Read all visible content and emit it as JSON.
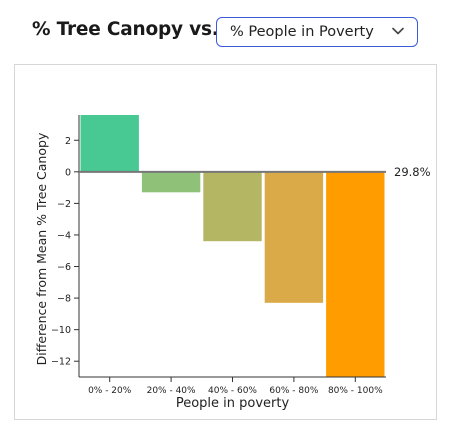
{
  "header": {
    "title": "% Tree Canopy vs.",
    "selector": {
      "value": "% People in Poverty",
      "icon": "chevron-down-icon"
    }
  },
  "chart_data": {
    "type": "bar",
    "xlabel": "People in poverty",
    "ylabel": "Difference from Mean % Tree Canopy",
    "categories": [
      "0% - 20%",
      "20% - 40%",
      "40% - 60%",
      "60% - 80%",
      "80% - 100%"
    ],
    "values": [
      3.6,
      -1.3,
      -4.4,
      -8.3,
      -13.0
    ],
    "colors": [
      "#48c993",
      "#8fc278",
      "#b5b664",
      "#dbaa48",
      "#ff9c00"
    ],
    "yticks": [
      2,
      0,
      -2,
      -4,
      -6,
      -8,
      -10,
      -12
    ],
    "ylim": [
      -13,
      3.6
    ],
    "baseline_label": "29.8%",
    "grid": false,
    "legend": "none"
  }
}
